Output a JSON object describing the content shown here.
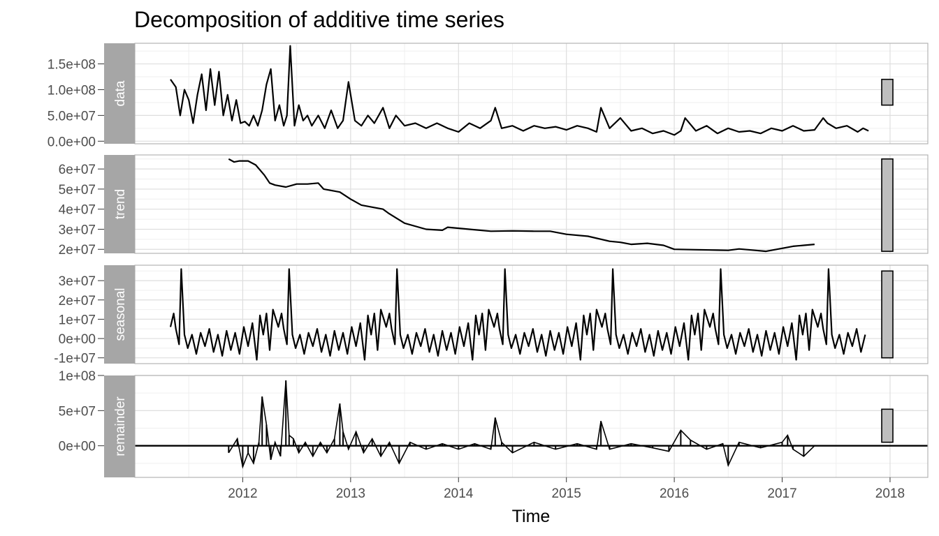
{
  "chart_data": {
    "type": "line",
    "title": "Decomposition of additive time series",
    "xlabel": "Time",
    "xlim": [
      2011.0,
      2018.35
    ],
    "x_ticks": [
      2012,
      2013,
      2014,
      2015,
      2016,
      2017,
      2018
    ],
    "x_tick_labels": [
      "2012",
      "2013",
      "2014",
      "2015",
      "2016",
      "2017",
      "2018"
    ],
    "grid": true,
    "range_bars": true,
    "colors": {
      "line": "#000000",
      "strip_fill": "#a6a6a6",
      "grid_major": "#dedede",
      "grid_minor": "#efefef",
      "panel_border": "#b3b3b3",
      "range_bar_fill": "#bebebe"
    },
    "panels": [
      {
        "name": "data",
        "strip_label": "data",
        "ylim": [
          -5000000.0,
          190000000.0
        ],
        "y_ticks": [
          0,
          50000000.0,
          100000000.0,
          150000000.0
        ],
        "y_tick_labels": [
          "0.0e+00",
          "5.0e+07",
          "1.0e+08",
          "1.5e+08"
        ],
        "range_bar": [
          70000000.0,
          120000000.0
        ],
        "series": [
          {
            "x": [
              2011.33,
              2011.38,
              2011.42,
              2011.46,
              2011.5,
              2011.54,
              2011.58,
              2011.62,
              2011.66,
              2011.7,
              2011.74,
              2011.78,
              2011.82,
              2011.86,
              2011.9,
              2011.94,
              2011.98,
              2012.02,
              2012.06,
              2012.1,
              2012.14,
              2012.18,
              2012.22,
              2012.26,
              2012.3,
              2012.34,
              2012.38,
              2012.41,
              2012.44,
              2012.48,
              2012.52,
              2012.56,
              2012.6,
              2012.64,
              2012.7,
              2012.76,
              2012.82,
              2012.88,
              2012.93,
              2012.98,
              2013.04,
              2013.1,
              2013.16,
              2013.22,
              2013.3,
              2013.36,
              2013.42,
              2013.5,
              2013.6,
              2013.7,
              2013.8,
              2013.9,
              2014.0,
              2014.1,
              2014.2,
              2014.3,
              2014.34,
              2014.4,
              2014.5,
              2014.6,
              2014.7,
              2014.8,
              2014.9,
              2015.0,
              2015.1,
              2015.2,
              2015.28,
              2015.32,
              2015.4,
              2015.5,
              2015.6,
              2015.7,
              2015.8,
              2015.9,
              2016.0,
              2016.06,
              2016.1,
              2016.2,
              2016.3,
              2016.4,
              2016.5,
              2016.6,
              2016.7,
              2016.8,
              2016.9,
              2017.0,
              2017.1,
              2017.2,
              2017.3,
              2017.38,
              2017.42,
              2017.5,
              2017.6,
              2017.7,
              2017.75,
              2017.8
            ],
            "y": [
              120000000.0,
              105000000.0,
              50000000.0,
              100000000.0,
              80000000.0,
              35000000.0,
              90000000.0,
              130000000.0,
              60000000.0,
              140000000.0,
              70000000.0,
              135000000.0,
              50000000.0,
              90000000.0,
              40000000.0,
              80000000.0,
              35000000.0,
              38000000.0,
              30000000.0,
              50000000.0,
              30000000.0,
              60000000.0,
              110000000.0,
              140000000.0,
              40000000.0,
              70000000.0,
              30000000.0,
              50000000.0,
              185000000.0,
              30000000.0,
              70000000.0,
              40000000.0,
              50000000.0,
              30000000.0,
              50000000.0,
              25000000.0,
              60000000.0,
              25000000.0,
              40000000.0,
              115000000.0,
              40000000.0,
              30000000.0,
              50000000.0,
              35000000.0,
              65000000.0,
              25000000.0,
              50000000.0,
              30000000.0,
              35000000.0,
              25000000.0,
              35000000.0,
              25000000.0,
              18000000.0,
              35000000.0,
              25000000.0,
              40000000.0,
              65000000.0,
              25000000.0,
              30000000.0,
              20000000.0,
              30000000.0,
              25000000.0,
              28000000.0,
              22000000.0,
              30000000.0,
              25000000.0,
              18000000.0,
              65000000.0,
              25000000.0,
              45000000.0,
              20000000.0,
              25000000.0,
              15000000.0,
              20000000.0,
              12000000.0,
              20000000.0,
              45000000.0,
              20000000.0,
              30000000.0,
              15000000.0,
              25000000.0,
              18000000.0,
              20000000.0,
              15000000.0,
              25000000.0,
              20000000.0,
              30000000.0,
              20000000.0,
              22000000.0,
              45000000.0,
              35000000.0,
              25000000.0,
              30000000.0,
              18000000.0,
              25000000.0,
              20000000.0
            ]
          }
        ]
      },
      {
        "name": "trend",
        "strip_label": "trend",
        "ylim": [
          18000000.0,
          67000000.0
        ],
        "y_ticks": [
          20000000.0,
          30000000.0,
          40000000.0,
          50000000.0,
          60000000.0
        ],
        "y_tick_labels": [
          "2e+07",
          "3e+07",
          "4e+07",
          "5e+07",
          "6e+07"
        ],
        "range_bar": [
          19000000.0,
          65000000.0
        ],
        "series": [
          {
            "x": [
              2011.87,
              2011.92,
              2011.97,
              2012.05,
              2012.12,
              2012.2,
              2012.25,
              2012.3,
              2012.4,
              2012.5,
              2012.6,
              2012.7,
              2012.75,
              2012.9,
              2013.0,
              2013.1,
              2013.2,
              2013.3,
              2013.35,
              2013.5,
              2013.7,
              2013.85,
              2013.9,
              2014.1,
              2014.3,
              2014.5,
              2014.7,
              2014.85,
              2015.0,
              2015.2,
              2015.4,
              2015.5,
              2015.6,
              2015.75,
              2015.9,
              2016.0,
              2016.2,
              2016.4,
              2016.5,
              2016.6,
              2016.75,
              2016.85,
              2017.0,
              2017.1,
              2017.2,
              2017.3
            ],
            "y": [
              65000000.0,
              63500000.0,
              64000000.0,
              64000000.0,
              62000000.0,
              57000000.0,
              53000000.0,
              52000000.0,
              51000000.0,
              52500000.0,
              52500000.0,
              53000000.0,
              50000000.0,
              48500000.0,
              45000000.0,
              42000000.0,
              41000000.0,
              40000000.0,
              38000000.0,
              33000000.0,
              30000000.0,
              29500000.0,
              31000000.0,
              30000000.0,
              29000000.0,
              29200000.0,
              29000000.0,
              29000000.0,
              27500000.0,
              26500000.0,
              24000000.0,
              23500000.0,
              22500000.0,
              23000000.0,
              22000000.0,
              20000000.0,
              19800000.0,
              19600000.0,
              19500000.0,
              20200000.0,
              19500000.0,
              19000000.0,
              20500000.0,
              21500000.0,
              22000000.0,
              22500000.0
            ]
          }
        ]
      },
      {
        "name": "seasonal",
        "strip_label": "seasonal",
        "ylim": [
          -13000000.0,
          38000000.0
        ],
        "y_ticks": [
          -10000000.0,
          0,
          10000000.0,
          20000000.0,
          30000000.0
        ],
        "y_tick_labels": [
          "-1e+07",
          "0e+00",
          "1e+07",
          "2e+07",
          "3e+07"
        ],
        "range_bar": [
          -10000000.0,
          35000000.0
        ],
        "season_pattern": {
          "start": 2011.33,
          "period": 1.0,
          "end": 2017.8,
          "phase": [
            0,
            0.03,
            0.05,
            0.08,
            0.1,
            0.13,
            0.16,
            0.2,
            0.24,
            0.28,
            0.32,
            0.36,
            0.4,
            0.44,
            0.48,
            0.52,
            0.56,
            0.6,
            0.64,
            0.68,
            0.72,
            0.76,
            0.8,
            0.83,
            0.86,
            0.89,
            0.92,
            0.95,
            1.0
          ],
          "value": [
            6000000.0,
            13000000.0,
            5000000.0,
            -3000000.0,
            36000000.0,
            2000000.0,
            -5000000.0,
            2000000.0,
            -8000000.0,
            3000000.0,
            -4000000.0,
            5000000.0,
            -7000000.0,
            2000000.0,
            -9000000.0,
            4000000.0,
            -6000000.0,
            3000000.0,
            -8000000.0,
            6000000.0,
            -4000000.0,
            8000000.0,
            -11000000.0,
            12000000.0,
            2000000.0,
            13000000.0,
            -6000000.0,
            15000000.0,
            6000000.0
          ]
        }
      },
      {
        "name": "remainder",
        "strip_label": "remainder",
        "ylim": [
          -45000000.0,
          100000000.0
        ],
        "y_ticks": [
          0,
          50000000.0,
          100000000.0
        ],
        "y_tick_labels": [
          "0e+00",
          "5e+07",
          "1e+08"
        ],
        "range_bar": [
          5000000.0,
          52000000.0
        ],
        "baseline": 0,
        "series": [
          {
            "x": [
              2011.87,
              2011.95,
              2012.0,
              2012.05,
              2012.1,
              2012.15,
              2012.18,
              2012.22,
              2012.26,
              2012.3,
              2012.35,
              2012.4,
              2012.43,
              2012.47,
              2012.52,
              2012.58,
              2012.65,
              2012.72,
              2012.78,
              2012.85,
              2012.9,
              2012.93,
              2012.98,
              2013.05,
              2013.12,
              2013.2,
              2013.28,
              2013.36,
              2013.45,
              2013.55,
              2013.7,
              2013.85,
              2014.0,
              2014.15,
              2014.3,
              2014.34,
              2014.4,
              2014.5,
              2014.7,
              2014.9,
              2015.1,
              2015.28,
              2015.32,
              2015.4,
              2015.6,
              2015.8,
              2015.95,
              2016.06,
              2016.15,
              2016.3,
              2016.45,
              2016.5,
              2016.6,
              2016.8,
              2017.0,
              2017.05,
              2017.1,
              2017.2,
              2017.3
            ],
            "y": [
              -10000000.0,
              10000000.0,
              -30000000.0,
              -10000000.0,
              -25000000.0,
              5000000.0,
              70000000.0,
              30000000.0,
              -20000000.0,
              5000000.0,
              -15000000.0,
              93000000.0,
              15000000.0,
              10000000.0,
              -10000000.0,
              5000000.0,
              -15000000.0,
              5000000.0,
              -10000000.0,
              10000000.0,
              60000000.0,
              20000000.0,
              -5000000.0,
              20000000.0,
              -10000000.0,
              10000000.0,
              -15000000.0,
              5000000.0,
              -25000000.0,
              5000000.0,
              -5000000.0,
              3000000.0,
              -5000000.0,
              3000000.0,
              -5000000.0,
              40000000.0,
              5000000.0,
              -10000000.0,
              5000000.0,
              -5000000.0,
              3000000.0,
              -5000000.0,
              35000000.0,
              -5000000.0,
              3000000.0,
              -3000000.0,
              -8000000.0,
              22000000.0,
              8000000.0,
              -5000000.0,
              3000000.0,
              -28000000.0,
              5000000.0,
              -3000000.0,
              5000000.0,
              15000000.0,
              -5000000.0,
              -15000000.0,
              0
            ]
          }
        ]
      }
    ]
  }
}
